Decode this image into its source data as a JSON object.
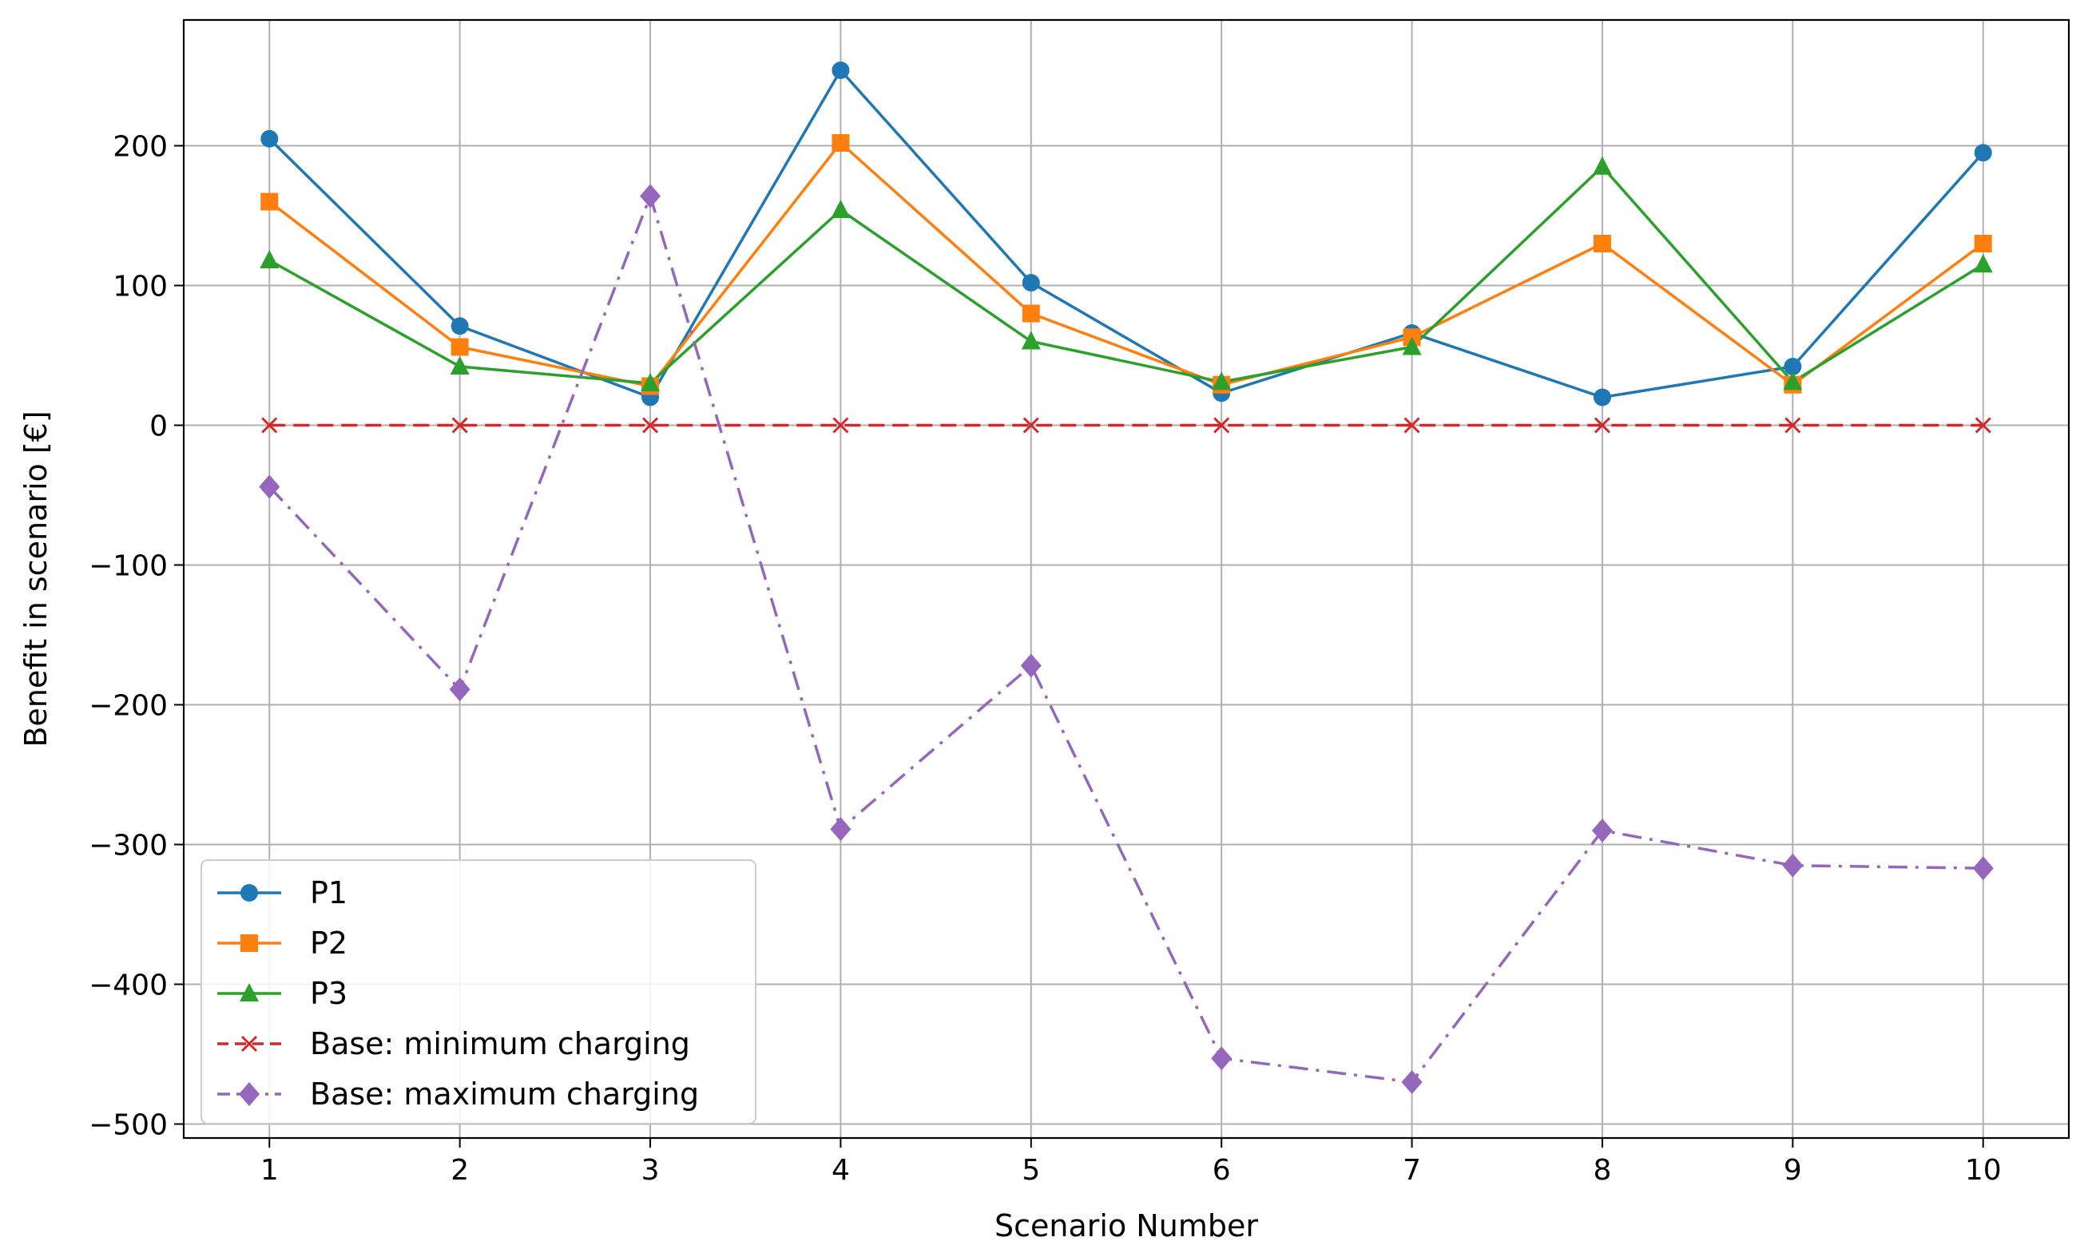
{
  "chart_data": {
    "type": "line",
    "title": "",
    "xlabel": "Scenario Number",
    "ylabel": "Benefit in scenario [€]",
    "x": [
      1,
      2,
      3,
      4,
      5,
      6,
      7,
      8,
      9,
      10
    ],
    "xlim": [
      0.55,
      10.45
    ],
    "ylim": [
      -510,
      290
    ],
    "xticks": [
      1,
      2,
      3,
      4,
      5,
      6,
      7,
      8,
      9,
      10
    ],
    "xtick_labels": [
      "1",
      "2",
      "3",
      "4",
      "5",
      "6",
      "7",
      "8",
      "9",
      "10"
    ],
    "yticks": [
      -500,
      -400,
      -300,
      -200,
      -100,
      0,
      100,
      200
    ],
    "ytick_labels": [
      "−500",
      "−400",
      "−300",
      "−200",
      "−100",
      "0",
      "100",
      "200"
    ],
    "grid": true,
    "legend_position": "lower-left",
    "series": [
      {
        "name": "P1",
        "color": "#1f77b4",
        "marker": "circle",
        "linestyle": "solid",
        "values": [
          205,
          71,
          20,
          254,
          102,
          23,
          66,
          20,
          42,
          195
        ]
      },
      {
        "name": "P2",
        "color": "#ff7f0e",
        "marker": "square",
        "linestyle": "solid",
        "values": [
          160,
          56,
          28,
          202,
          80,
          29,
          63,
          130,
          29,
          130
        ]
      },
      {
        "name": "P3",
        "color": "#2ca02c",
        "marker": "triangle",
        "linestyle": "solid",
        "values": [
          118,
          42,
          30,
          154,
          60,
          31,
          56,
          185,
          31,
          115
        ]
      },
      {
        "name": "Base: minimum charging",
        "color": "#d62728",
        "marker": "x",
        "linestyle": "dashed",
        "values": [
          0,
          0,
          0,
          0,
          0,
          0,
          0,
          0,
          0,
          0
        ]
      },
      {
        "name": "Base: maximum charging",
        "color": "#9467bd",
        "marker": "diamond",
        "linestyle": "dashdot",
        "values": [
          -44,
          -189,
          164,
          -289,
          -172,
          -453,
          -470,
          -290,
          -315,
          -317
        ]
      }
    ]
  }
}
